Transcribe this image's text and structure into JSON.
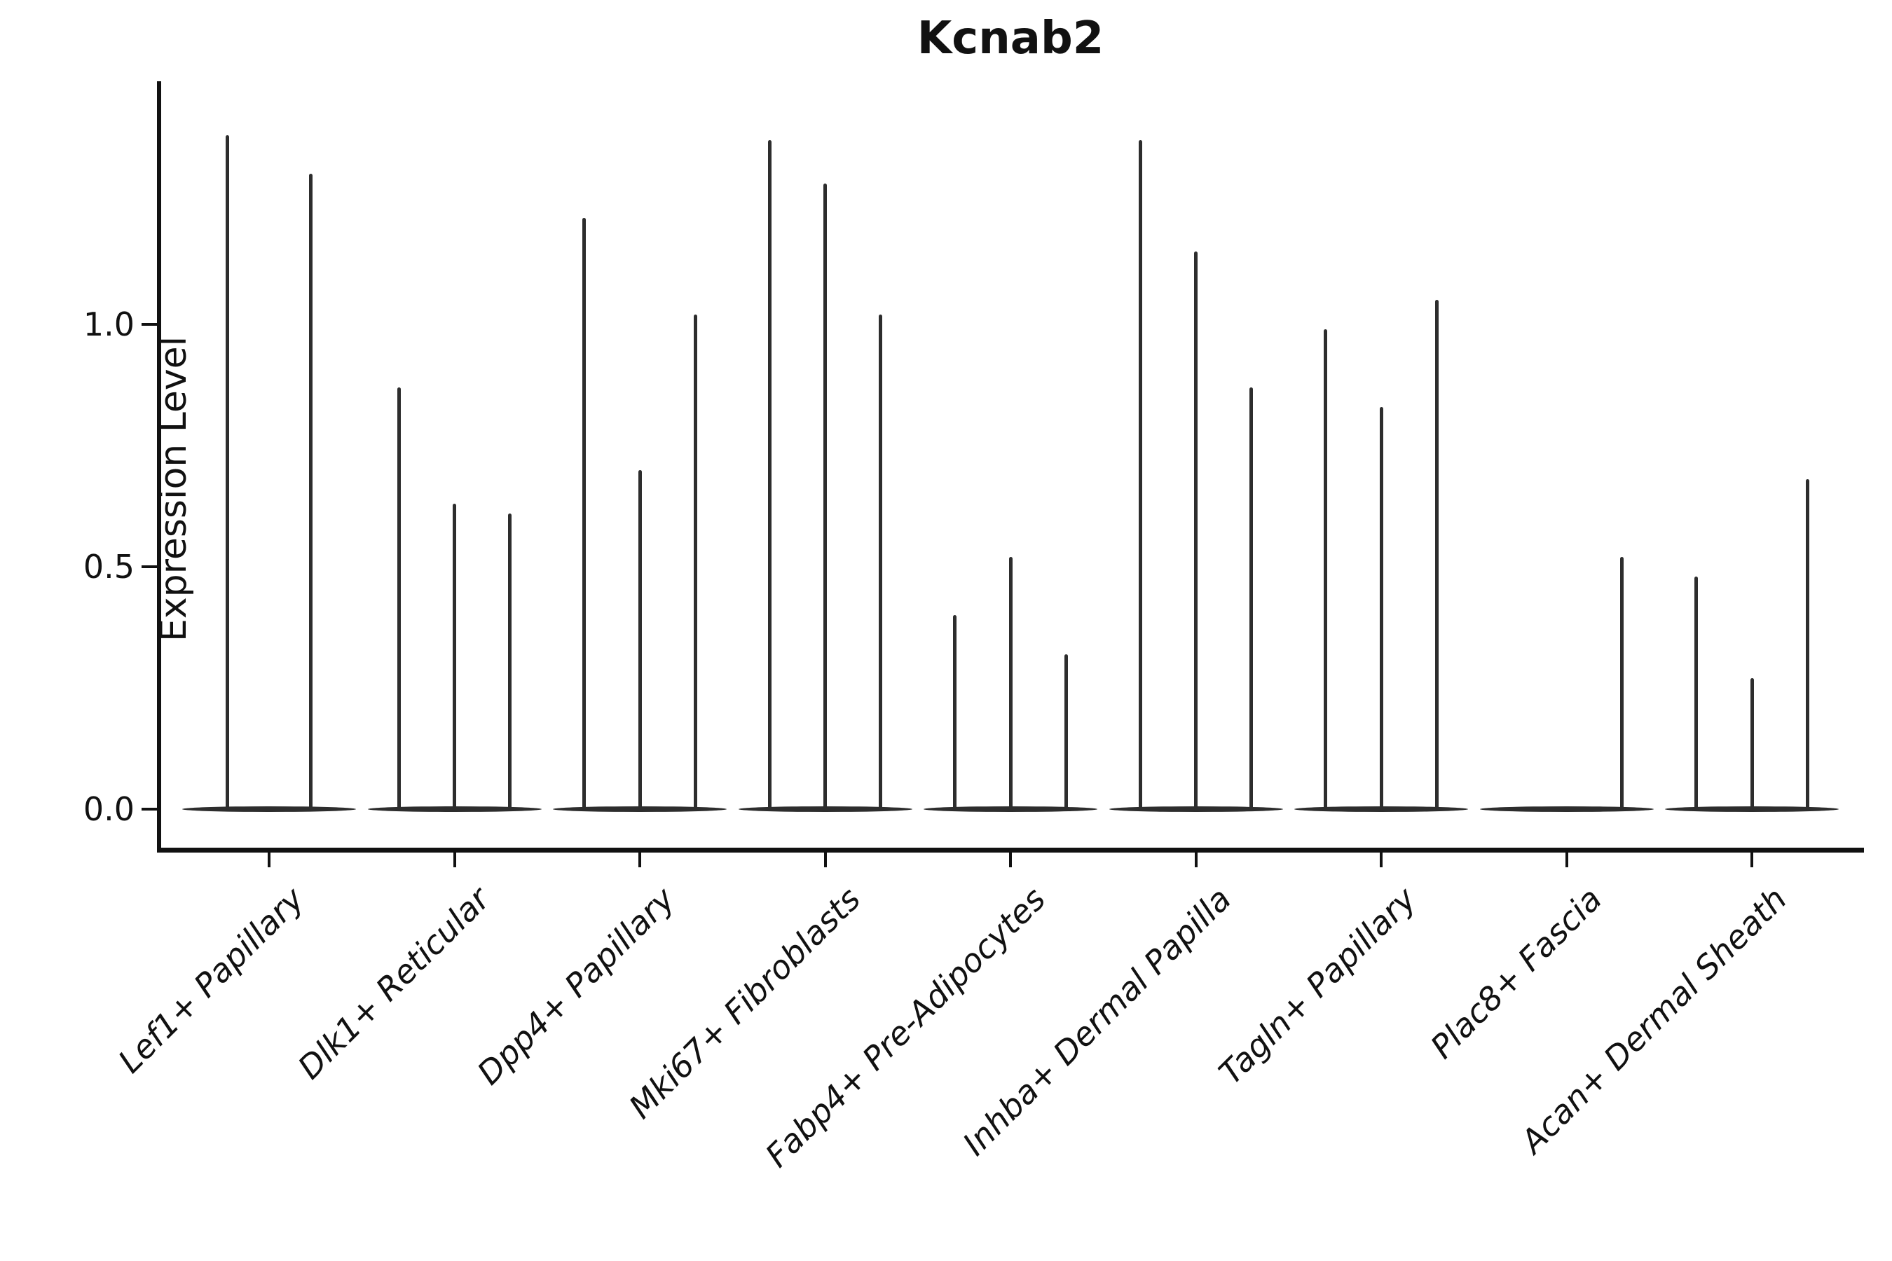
{
  "colors": {
    "ink": "#111111",
    "violin": "#2d2d2d",
    "background": "#ffffff"
  },
  "chart_data": {
    "type": "violin",
    "title": "Kcnab2",
    "xlabel": "",
    "ylabel": "Expression Level",
    "ylim": [
      0,
      1.49
    ],
    "yticks": [
      0.0,
      0.5,
      1.0
    ],
    "ytick_labels": [
      "0.0",
      "0.5",
      "1.0"
    ],
    "grid": false,
    "legend": "none",
    "note": "Each category shows 2-3 extremely thin violins; values are the peak (max) expression height of each violin spike; most density sits at 0 forming a flat lens at the baseline.",
    "categories": [
      "Lef1+ Papillary",
      "Dlk1+ Reticular",
      "Dpp4+ Papillary",
      "Mki67+ Fibroblasts",
      "Fabp4+ Pre-Adipocytes",
      "Inhba+ Dermal Papilla",
      "Tagln+ Papillary",
      "Plac8+ Fascia",
      "Acan+ Dermal Sheath"
    ],
    "groups": [
      {
        "category": "Lef1+ Papillary",
        "violin_peaks": [
          1.39,
          1.31
        ]
      },
      {
        "category": "Dlk1+ Reticular",
        "violin_peaks": [
          0.87,
          0.63,
          0.61
        ]
      },
      {
        "category": "Dpp4+ Papillary",
        "violin_peaks": [
          1.22,
          0.7,
          1.02
        ]
      },
      {
        "category": "Mki67+ Fibroblasts",
        "violin_peaks": [
          1.38,
          1.29,
          1.02
        ]
      },
      {
        "category": "Fabp4+ Pre-Adipocytes",
        "violin_peaks": [
          0.4,
          0.52,
          0.32
        ]
      },
      {
        "category": "Inhba+ Dermal Papilla",
        "violin_peaks": [
          1.38,
          1.15,
          0.87
        ]
      },
      {
        "category": "Tagln+ Papillary",
        "violin_peaks": [
          0.99,
          0.83,
          1.05
        ]
      },
      {
        "category": "Plac8+ Fascia",
        "violin_peaks": [
          0.0,
          0.0,
          0.52
        ]
      },
      {
        "category": "Acan+ Dermal Sheath",
        "violin_peaks": [
          0.48,
          0.27,
          0.68
        ]
      }
    ]
  }
}
